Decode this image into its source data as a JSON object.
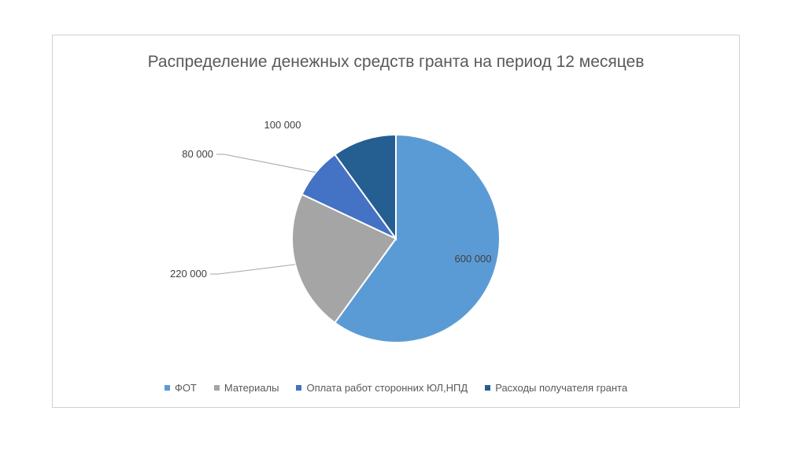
{
  "chart_data": {
    "type": "pie",
    "title": "Распределение денежных средств гранта на период 12 месяцев",
    "categories": [
      "ФОТ",
      "Материалы",
      "Оплата работ сторонних ЮЛ,НПД",
      "Расходы получателя гранта"
    ],
    "values": [
      600000,
      220000,
      80000,
      100000
    ],
    "data_labels": [
      "600 000",
      "220 000",
      "80 000",
      "100 000"
    ],
    "colors": [
      "#5b9bd5",
      "#a5a5a5",
      "#4472c4",
      "#255e91"
    ],
    "legend_position": "bottom",
    "start_angle": "top, clockwise"
  }
}
